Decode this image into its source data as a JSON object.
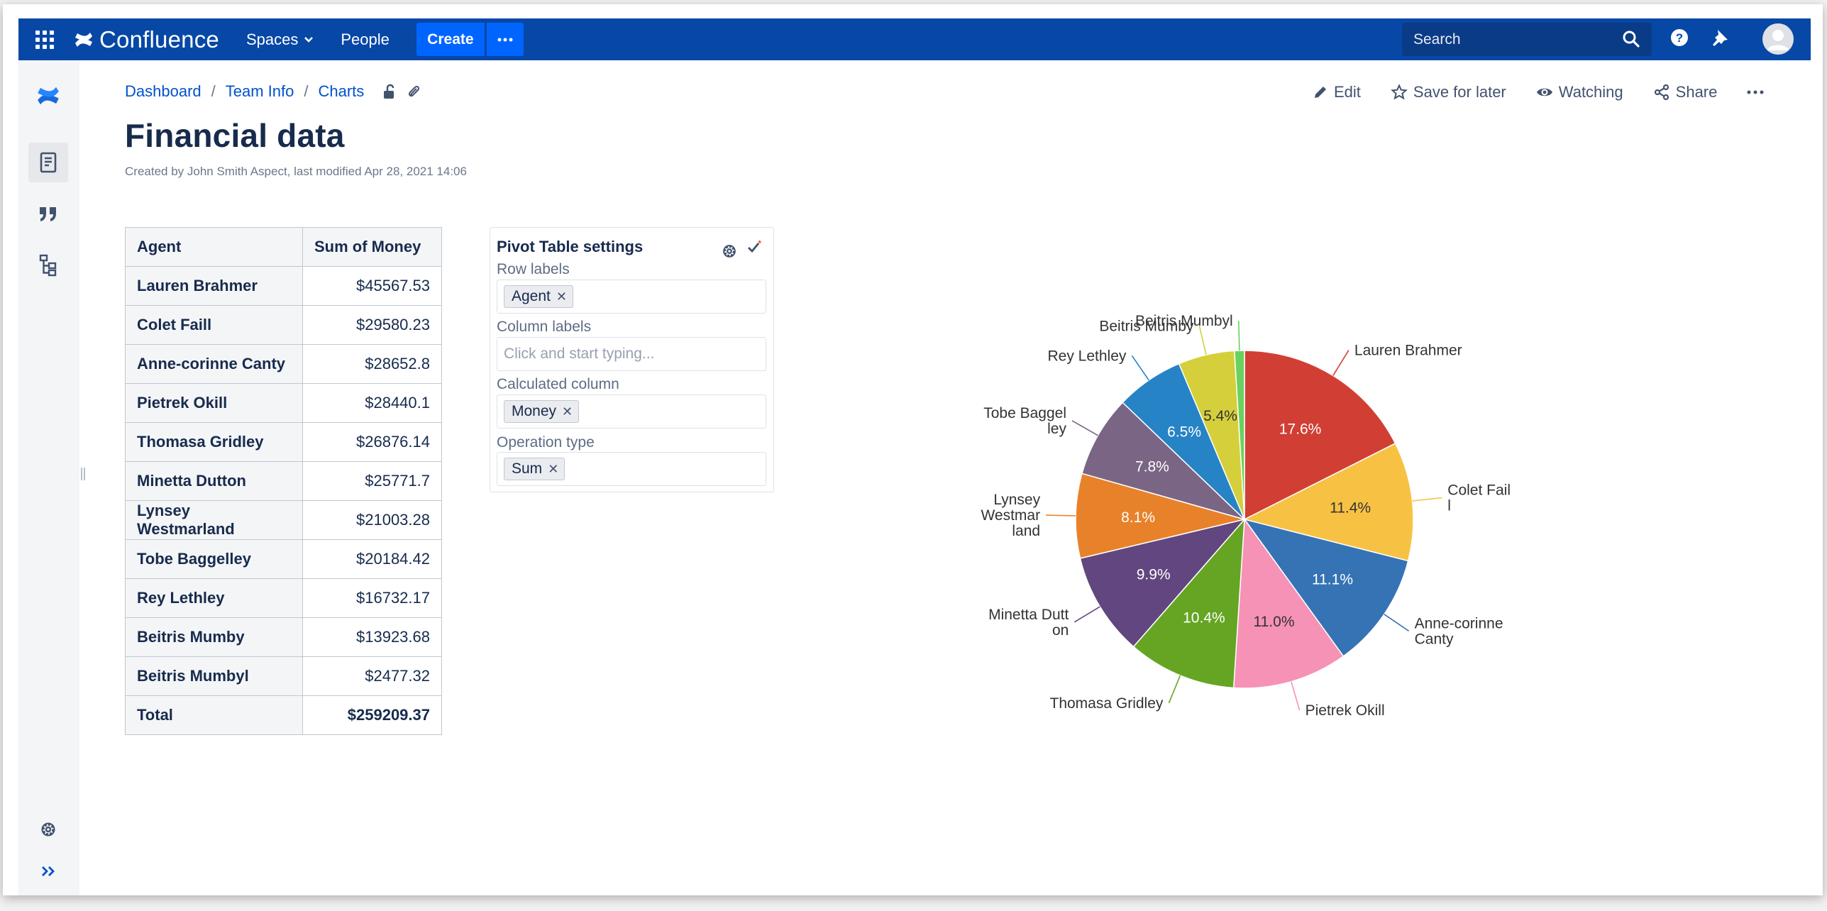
{
  "topnav": {
    "logo_text": "Confluence",
    "spaces_label": "Spaces",
    "people_label": "People",
    "create_label": "Create",
    "search_placeholder": "Search",
    "brand_color": "#0747a6",
    "create_color": "#0065ff"
  },
  "breadcrumb": [
    "Dashboard",
    "Team Info",
    "Charts"
  ],
  "page": {
    "title": "Financial data",
    "byline": "Created by John Smith Aspect, last modified Apr 28, 2021 14:06"
  },
  "page_actions": {
    "edit": "Edit",
    "save_for_later": "Save for later",
    "watching": "Watching",
    "share": "Share"
  },
  "table": {
    "headers": [
      "Agent",
      "Sum of Money"
    ],
    "rows": [
      {
        "agent": "Lauren Brahmer",
        "money": "$45567.53"
      },
      {
        "agent": "Colet Faill",
        "money": "$29580.23"
      },
      {
        "agent": "Anne-corinne Canty",
        "money": "$28652.8"
      },
      {
        "agent": "Pietrek Okill",
        "money": "$28440.1"
      },
      {
        "agent": "Thomasa Gridley",
        "money": "$26876.14"
      },
      {
        "agent": "Minetta Dutton",
        "money": "$25771.7"
      },
      {
        "agent": "Lynsey Westmarland",
        "money": "$21003.28"
      },
      {
        "agent": "Tobe Baggelley",
        "money": "$20184.42"
      },
      {
        "agent": "Rey Lethley",
        "money": "$16732.17"
      },
      {
        "agent": "Beitris Mumby",
        "money": "$13923.68"
      },
      {
        "agent": "Beitris Mumbyl",
        "money": "$2477.32"
      }
    ],
    "total": {
      "agent": "Total",
      "money": "$259209.37"
    }
  },
  "pivot": {
    "title": "Pivot Table settings",
    "row_labels": "Row labels",
    "row_tag": "Agent",
    "column_labels": "Column labels",
    "column_placeholder": "Click and start typing...",
    "calculated_column": "Calculated column",
    "calc_tag": "Money",
    "operation_type": "Operation type",
    "operation_tag": "Sum"
  },
  "chart_data": {
    "type": "pie",
    "slices": [
      {
        "label": "Lauren Brahmer",
        "label_lines": [
          "Lauren Brahmer"
        ],
        "value": 17.6,
        "pct": "17.6%",
        "color": "#d13f34"
      },
      {
        "label": "Colet Faill",
        "label_lines": [
          "Colet Fail",
          "l"
        ],
        "value": 11.4,
        "pct": "11.4%",
        "color": "#f7c244"
      },
      {
        "label": "Anne-corinne Canty",
        "label_lines": [
          "Anne-corinne",
          "Canty"
        ],
        "value": 11.1,
        "pct": "11.1%",
        "color": "#3573b5"
      },
      {
        "label": "Pietrek Okill",
        "label_lines": [
          "Pietrek Okill"
        ],
        "value": 11.0,
        "pct": "11.0%",
        "color": "#f592b5"
      },
      {
        "label": "Thomasa Gridley",
        "label_lines": [
          "Thomasa Gridley"
        ],
        "value": 10.4,
        "pct": "10.4%",
        "color": "#65a523"
      },
      {
        "label": "Minetta Dutton",
        "label_lines": [
          "Minetta Dutt",
          "on"
        ],
        "value": 9.9,
        "pct": "9.9%",
        "color": "#62467f"
      },
      {
        "label": "Lynsey Westmarland",
        "label_lines": [
          "Lynsey",
          "Westmar",
          "land"
        ],
        "value": 8.1,
        "pct": "8.1%",
        "color": "#e8822a"
      },
      {
        "label": "Tobe Baggelley",
        "label_lines": [
          "Tobe Baggel",
          "ley"
        ],
        "value": 7.8,
        "pct": "7.8%",
        "color": "#7b6585"
      },
      {
        "label": "Rey Lethley",
        "label_lines": [
          "Rey Lethley"
        ],
        "value": 6.5,
        "pct": "6.5%",
        "color": "#2683c6"
      },
      {
        "label": "Beitris Mumby",
        "label_lines": [
          "Beitris Mumby"
        ],
        "value": 5.4,
        "pct": "5.4%",
        "color": "#d5cf3b"
      },
      {
        "label": "Beitris Mumbyl",
        "label_lines": [
          "Beitris Mumbyl"
        ],
        "value": 0.95,
        "pct": "",
        "color": "#6bd15e"
      }
    ]
  }
}
